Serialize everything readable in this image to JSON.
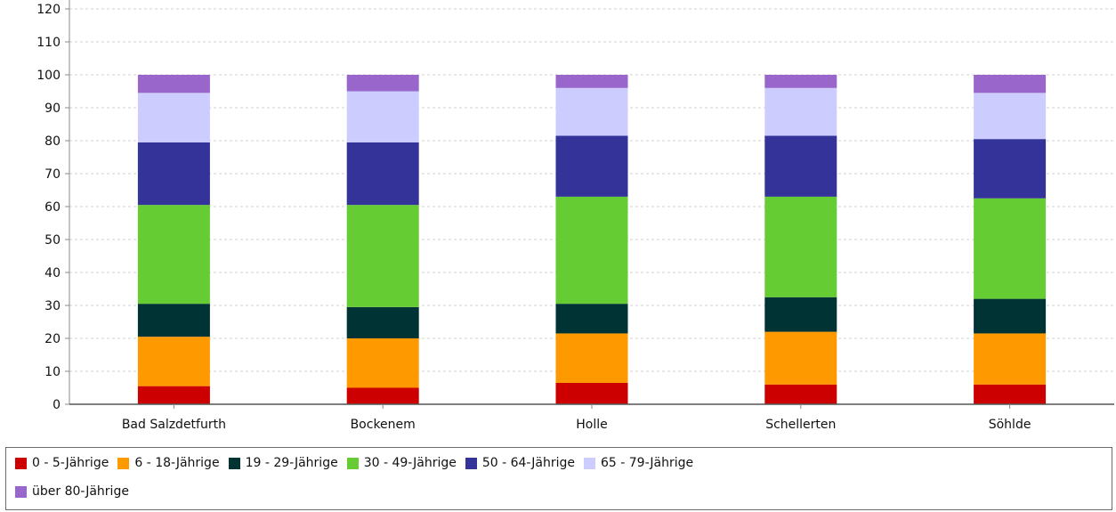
{
  "chart_data": {
    "type": "bar",
    "stacked": true,
    "title": "",
    "xlabel": "",
    "ylabel": "",
    "ylim": [
      0,
      120
    ],
    "yticks": [
      0,
      10,
      20,
      30,
      40,
      50,
      60,
      70,
      80,
      90,
      100,
      110,
      120
    ],
    "grid": true,
    "legend_position": "bottom",
    "categories": [
      "Bad Salzdetfurth",
      "Bockenem",
      "Holle",
      "Schellerten",
      "Söhlde"
    ],
    "series": [
      {
        "name": "0 - 5-Jährige",
        "color": "#cc0000",
        "values": [
          5.5,
          5.0,
          6.5,
          6.0,
          6.0
        ]
      },
      {
        "name": "6 - 18-Jährige",
        "color": "#ff9900",
        "values": [
          15.0,
          15.0,
          15.0,
          16.0,
          15.5
        ]
      },
      {
        "name": "19 - 29-Jährige",
        "color": "#003333",
        "values": [
          10.0,
          9.5,
          9.0,
          10.5,
          10.5
        ]
      },
      {
        "name": "30 - 49-Jährige",
        "color": "#66cc33",
        "values": [
          30.0,
          31.0,
          32.5,
          30.5,
          30.5
        ]
      },
      {
        "name": "50 - 64-Jährige",
        "color": "#333399",
        "values": [
          19.0,
          19.0,
          18.5,
          18.5,
          18.0
        ]
      },
      {
        "name": "65 - 79-Jährige",
        "color": "#ccccff",
        "values": [
          15.0,
          15.5,
          14.5,
          14.5,
          14.0
        ]
      },
      {
        "name": "über 80-Jährige",
        "color": "#9966cc",
        "values": [
          5.5,
          5.0,
          4.0,
          4.0,
          5.5
        ]
      }
    ]
  }
}
